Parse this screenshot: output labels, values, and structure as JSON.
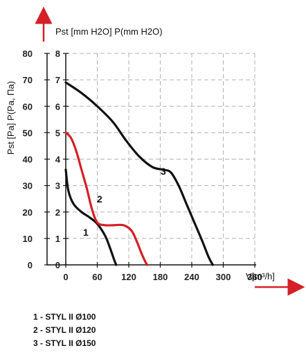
{
  "chart_data": {
    "type": "line",
    "xlabel": "V[m³/h]",
    "ylabel_left": "Pst [Pa] P(Pa, Па)",
    "ylabel_top": "Pst [mm H2O] P(mm H2O)",
    "x_ticks": [
      0,
      60,
      120,
      180,
      240,
      300,
      360
    ],
    "y_ticks_pa": [
      0,
      10,
      20,
      30,
      40,
      50,
      60,
      70,
      80
    ],
    "y_ticks_mmh2o": [
      0,
      1,
      2,
      3,
      4,
      5,
      6,
      7,
      8
    ],
    "xlim": [
      0,
      420
    ],
    "ylim": [
      0,
      80
    ],
    "grid": true,
    "series": [
      {
        "name": "1",
        "color": "#111111",
        "x": [
          0,
          5,
          15,
          30,
          45,
          60,
          75,
          85,
          92,
          96
        ],
        "y": [
          36,
          28,
          23,
          20,
          18,
          15.5,
          11,
          6,
          2,
          0
        ]
      },
      {
        "name": "2",
        "color": "#d42027",
        "x": [
          0,
          10,
          20,
          30,
          40,
          50,
          60,
          75,
          90,
          110,
          125,
          135,
          145,
          152,
          155
        ],
        "y": [
          50,
          48,
          43,
          36,
          29,
          21,
          16,
          15,
          15,
          15,
          13,
          9,
          4,
          1,
          0
        ]
      },
      {
        "name": "3",
        "color": "#111111",
        "x": [
          0,
          30,
          60,
          90,
          115,
          140,
          165,
          185,
          200,
          215,
          230,
          245,
          260,
          272,
          280
        ],
        "y": [
          69,
          65,
          60,
          54,
          47,
          41,
          37,
          36,
          35,
          30,
          23,
          16,
          9,
          3,
          0
        ]
      }
    ]
  },
  "curve_labels": [
    "1",
    "2",
    "3"
  ],
  "legend": [
    "1 - STYL II Ø100",
    "2 - STYL II Ø120",
    "3 - STYL II Ø150"
  ]
}
